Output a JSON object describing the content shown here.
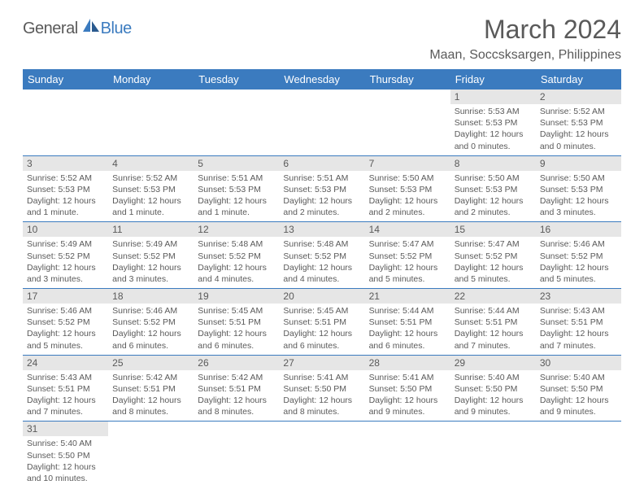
{
  "brand": {
    "part1": "General",
    "part2": "Blue"
  },
  "title": "March 2024",
  "location": "Maan, Soccsksargen, Philippines",
  "colors": {
    "header_bg": "#3b7bbf",
    "header_text": "#ffffff",
    "daynum_bg": "#e6e6e6",
    "text": "#5a5a5a",
    "row_border": "#3b7bbf",
    "page_bg": "#ffffff"
  },
  "typography": {
    "title_fontsize": 32,
    "location_fontsize": 16,
    "weekday_fontsize": 13,
    "daynum_fontsize": 12,
    "daytext_fontsize": 10.5
  },
  "weekdays": [
    "Sunday",
    "Monday",
    "Tuesday",
    "Wednesday",
    "Thursday",
    "Friday",
    "Saturday"
  ],
  "weeks": [
    [
      null,
      null,
      null,
      null,
      null,
      {
        "n": "1",
        "sr": "5:53 AM",
        "ss": "5:53 PM",
        "dl": "12 hours and 0 minutes."
      },
      {
        "n": "2",
        "sr": "5:52 AM",
        "ss": "5:53 PM",
        "dl": "12 hours and 0 minutes."
      }
    ],
    [
      {
        "n": "3",
        "sr": "5:52 AM",
        "ss": "5:53 PM",
        "dl": "12 hours and 1 minute."
      },
      {
        "n": "4",
        "sr": "5:52 AM",
        "ss": "5:53 PM",
        "dl": "12 hours and 1 minute."
      },
      {
        "n": "5",
        "sr": "5:51 AM",
        "ss": "5:53 PM",
        "dl": "12 hours and 1 minute."
      },
      {
        "n": "6",
        "sr": "5:51 AM",
        "ss": "5:53 PM",
        "dl": "12 hours and 2 minutes."
      },
      {
        "n": "7",
        "sr": "5:50 AM",
        "ss": "5:53 PM",
        "dl": "12 hours and 2 minutes."
      },
      {
        "n": "8",
        "sr": "5:50 AM",
        "ss": "5:53 PM",
        "dl": "12 hours and 2 minutes."
      },
      {
        "n": "9",
        "sr": "5:50 AM",
        "ss": "5:53 PM",
        "dl": "12 hours and 3 minutes."
      }
    ],
    [
      {
        "n": "10",
        "sr": "5:49 AM",
        "ss": "5:52 PM",
        "dl": "12 hours and 3 minutes."
      },
      {
        "n": "11",
        "sr": "5:49 AM",
        "ss": "5:52 PM",
        "dl": "12 hours and 3 minutes."
      },
      {
        "n": "12",
        "sr": "5:48 AM",
        "ss": "5:52 PM",
        "dl": "12 hours and 4 minutes."
      },
      {
        "n": "13",
        "sr": "5:48 AM",
        "ss": "5:52 PM",
        "dl": "12 hours and 4 minutes."
      },
      {
        "n": "14",
        "sr": "5:47 AM",
        "ss": "5:52 PM",
        "dl": "12 hours and 5 minutes."
      },
      {
        "n": "15",
        "sr": "5:47 AM",
        "ss": "5:52 PM",
        "dl": "12 hours and 5 minutes."
      },
      {
        "n": "16",
        "sr": "5:46 AM",
        "ss": "5:52 PM",
        "dl": "12 hours and 5 minutes."
      }
    ],
    [
      {
        "n": "17",
        "sr": "5:46 AM",
        "ss": "5:52 PM",
        "dl": "12 hours and 5 minutes."
      },
      {
        "n": "18",
        "sr": "5:46 AM",
        "ss": "5:52 PM",
        "dl": "12 hours and 6 minutes."
      },
      {
        "n": "19",
        "sr": "5:45 AM",
        "ss": "5:51 PM",
        "dl": "12 hours and 6 minutes."
      },
      {
        "n": "20",
        "sr": "5:45 AM",
        "ss": "5:51 PM",
        "dl": "12 hours and 6 minutes."
      },
      {
        "n": "21",
        "sr": "5:44 AM",
        "ss": "5:51 PM",
        "dl": "12 hours and 6 minutes."
      },
      {
        "n": "22",
        "sr": "5:44 AM",
        "ss": "5:51 PM",
        "dl": "12 hours and 7 minutes."
      },
      {
        "n": "23",
        "sr": "5:43 AM",
        "ss": "5:51 PM",
        "dl": "12 hours and 7 minutes."
      }
    ],
    [
      {
        "n": "24",
        "sr": "5:43 AM",
        "ss": "5:51 PM",
        "dl": "12 hours and 7 minutes."
      },
      {
        "n": "25",
        "sr": "5:42 AM",
        "ss": "5:51 PM",
        "dl": "12 hours and 8 minutes."
      },
      {
        "n": "26",
        "sr": "5:42 AM",
        "ss": "5:51 PM",
        "dl": "12 hours and 8 minutes."
      },
      {
        "n": "27",
        "sr": "5:41 AM",
        "ss": "5:50 PM",
        "dl": "12 hours and 8 minutes."
      },
      {
        "n": "28",
        "sr": "5:41 AM",
        "ss": "5:50 PM",
        "dl": "12 hours and 9 minutes."
      },
      {
        "n": "29",
        "sr": "5:40 AM",
        "ss": "5:50 PM",
        "dl": "12 hours and 9 minutes."
      },
      {
        "n": "30",
        "sr": "5:40 AM",
        "ss": "5:50 PM",
        "dl": "12 hours and 9 minutes."
      }
    ],
    [
      {
        "n": "31",
        "sr": "5:40 AM",
        "ss": "5:50 PM",
        "dl": "12 hours and 10 minutes."
      },
      null,
      null,
      null,
      null,
      null,
      null
    ]
  ],
  "labels": {
    "sunrise": "Sunrise:",
    "sunset": "Sunset:",
    "daylight": "Daylight:"
  }
}
